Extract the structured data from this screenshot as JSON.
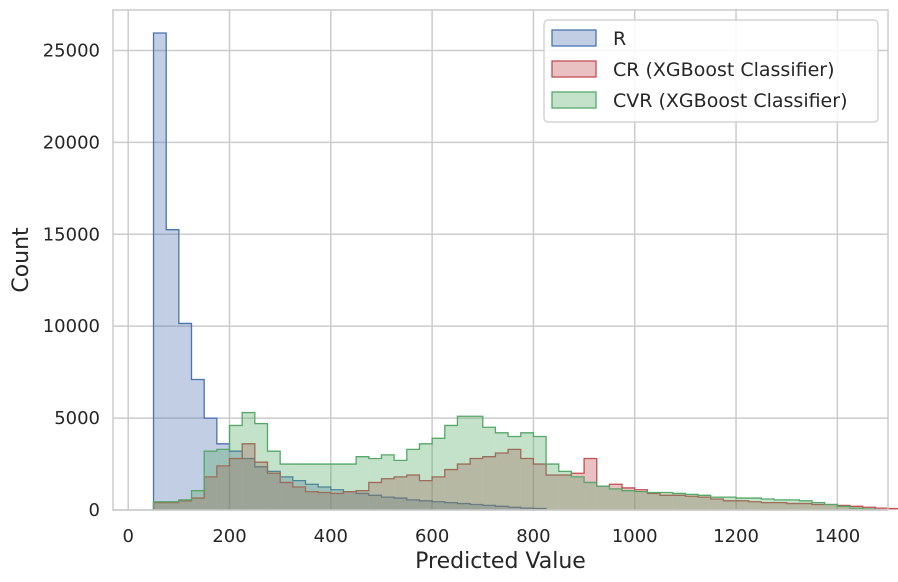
{
  "chart_data": {
    "type": "histogram",
    "xlabel": "Predicted Value",
    "ylabel": "Count",
    "xlim": [
      -30,
      1500
    ],
    "ylim": [
      0,
      27200
    ],
    "x_ticks": [
      0,
      200,
      400,
      600,
      800,
      1000,
      1200,
      1400
    ],
    "y_ticks": [
      0,
      5000,
      10000,
      15000,
      20000,
      25000
    ],
    "grid": true,
    "legend_position": "top-right",
    "bin_start": 50,
    "bin_width": 25,
    "series": [
      {
        "name": "R",
        "color": "#4c72b0",
        "fill_opacity": 0.35,
        "values": [
          25950,
          15250,
          10150,
          7100,
          5000,
          3600,
          3200,
          2800,
          2350,
          2100,
          1800,
          1600,
          1400,
          1250,
          1100,
          1000,
          900,
          800,
          700,
          650,
          550,
          500,
          450,
          400,
          350,
          300,
          250,
          200,
          150,
          100,
          80
        ]
      },
      {
        "name": "CR (XGBoost Classifier)",
        "color": "#c44e52",
        "fill_opacity": 0.35,
        "values": [
          400,
          400,
          500,
          650,
          1800,
          2400,
          2800,
          3600,
          2600,
          2000,
          1500,
          1250,
          1000,
          950,
          900,
          1000,
          1050,
          1500,
          1700,
          1800,
          1900,
          1600,
          1800,
          2200,
          2500,
          2800,
          2900,
          3100,
          3300,
          2800,
          2500,
          1900,
          1900,
          2000,
          2800,
          1300,
          1400,
          1200,
          1100,
          900,
          800,
          800,
          750,
          700,
          600,
          500,
          500,
          450,
          400,
          400,
          350,
          350,
          300,
          300,
          250,
          200,
          150,
          100,
          80,
          50
        ]
      },
      {
        "name": "CVR (XGBoost Classifier)",
        "color": "#55a868",
        "fill_opacity": 0.35,
        "values": [
          450,
          450,
          550,
          1050,
          3200,
          3300,
          4600,
          5300,
          4700,
          3200,
          2500,
          2500,
          2500,
          2500,
          2500,
          2500,
          2900,
          2800,
          3000,
          2700,
          3300,
          3600,
          3900,
          4600,
          5100,
          5100,
          4500,
          4200,
          4000,
          4200,
          4000,
          2500,
          2100,
          1800,
          1500,
          1300,
          1150,
          1050,
          1000,
          950,
          950,
          900,
          850,
          800,
          700,
          700,
          650,
          650,
          600,
          550,
          550,
          500,
          400,
          300,
          200,
          100,
          50
        ]
      }
    ]
  }
}
